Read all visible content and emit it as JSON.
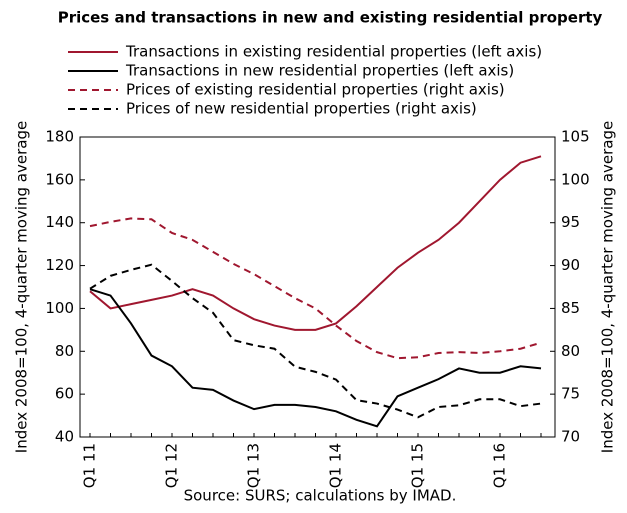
{
  "chart_data": {
    "type": "line",
    "title": "Prices and transactions in new and existing residential property",
    "source": "Source: SURS; calculations by IMAD.",
    "ylabel": "Index 2008=100, 4-quarter moving average",
    "y2label": "Index 2008=100, 4-quarter moving average",
    "categories": [
      "Q1 11",
      null,
      null,
      null,
      "Q1 12",
      null,
      null,
      null,
      "Q1 13",
      null,
      null,
      null,
      "Q1 14",
      null,
      null,
      null,
      "Q1 15",
      null,
      null,
      null,
      "Q1 16",
      null,
      null
    ],
    "ylim": [
      40,
      180
    ],
    "yticks": [
      40,
      60,
      80,
      100,
      120,
      140,
      160,
      180
    ],
    "y2lim": [
      70,
      105
    ],
    "y2ticks": [
      70,
      75,
      80,
      85,
      90,
      95,
      100,
      105
    ],
    "series": [
      {
        "name": "Transactions in existing residential properties (left axis)",
        "color": "#a0172f",
        "dash": false,
        "values": [
          108,
          100,
          102,
          104,
          106,
          109,
          106,
          100,
          95,
          92,
          90,
          90,
          93,
          101,
          110,
          119,
          126,
          132,
          140,
          150,
          160,
          168,
          171
        ]
      },
      {
        "name": "Transactions in new residential properties (left axis)",
        "color": "#000000",
        "dash": false,
        "values": [
          109,
          106,
          93,
          78,
          73,
          63,
          62,
          57,
          53,
          55,
          55,
          54,
          52,
          48,
          45,
          59,
          63,
          67,
          72,
          70,
          70,
          73,
          72
        ]
      },
      {
        "name": "Prices of existing residential properties (right axis)",
        "color": "#a0172f",
        "dash": true,
        "axis": "y2",
        "values": [
          94.6,
          95.1,
          95.5,
          95.4,
          93.8,
          93,
          91.6,
          90.2,
          89,
          87.6,
          86.2,
          85,
          83,
          81.2,
          79.9,
          79.2,
          79.3,
          79.8,
          79.9,
          79.8,
          80,
          80.3,
          81
        ]
      },
      {
        "name": "Prices of new residential properties (right axis)",
        "color": "#000000",
        "dash": true,
        "axis": "y2",
        "values": [
          87.3,
          88.8,
          89.5,
          90.1,
          88.2,
          86.2,
          84.5,
          81.3,
          80.7,
          80.3,
          78.2,
          77.6,
          76.7,
          74.3,
          73.9,
          73.2,
          72.3,
          73.5,
          73.7,
          74.4,
          74.4,
          73.6,
          73.9
        ]
      }
    ]
  }
}
